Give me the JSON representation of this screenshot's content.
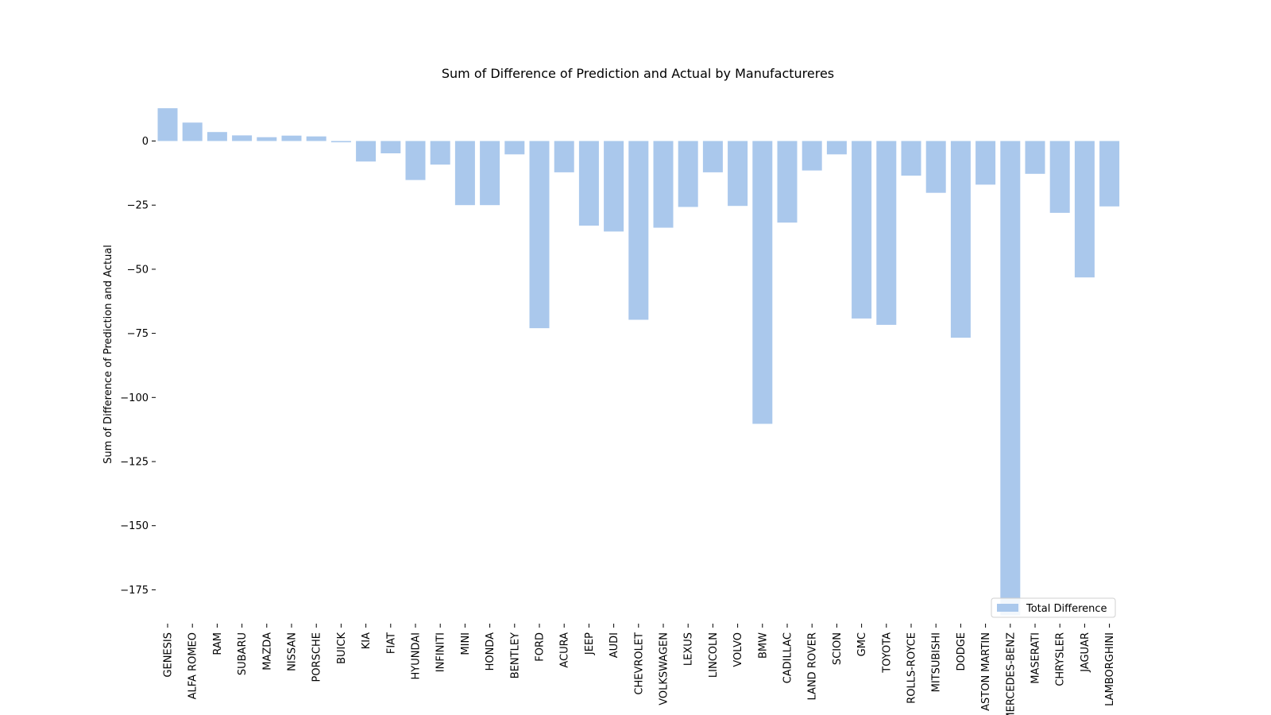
{
  "chart_data": {
    "type": "bar",
    "title": "Sum of Difference of Prediction and Actual by Manufactureres",
    "xlabel": "",
    "ylabel": "Sum of Difference of Prediction and Actual",
    "categories": [
      "GENESIS",
      "ALFA ROMEO",
      "RAM",
      "SUBARU",
      "MAZDA",
      "NISSAN",
      "PORSCHE",
      "BUICK",
      "KIA",
      "FIAT",
      "HYUNDAI",
      "INFINITI",
      "MINI",
      "HONDA",
      "BENTLEY",
      "FORD",
      "ACURA",
      "JEEP",
      "AUDI",
      "CHEVROLET",
      "VOLKSWAGEN",
      "LEXUS",
      "LINCOLN",
      "VOLVO",
      "BMW",
      "CADILLAC",
      "LAND ROVER",
      "SCION",
      "GMC",
      "TOYOTA",
      "ROLLS-ROYCE",
      "MITSUBISHI",
      "DODGE",
      "ASTON MARTIN",
      "MERCEDES-BENZ",
      "MASERATI",
      "CHRYSLER",
      "JAGUAR",
      "LAMBORGHINI"
    ],
    "series": [
      {
        "name": "Total Difference",
        "color": "#aac8ec",
        "values": [
          12.8,
          7.2,
          3.5,
          2.2,
          1.5,
          2.1,
          1.8,
          -0.5,
          -8,
          -4.8,
          -15.2,
          -9.2,
          -25,
          -25,
          -5.2,
          -73,
          -12.2,
          -33,
          -35.3,
          -69.7,
          -33.8,
          -25.7,
          -12.2,
          -25.3,
          -110.3,
          -31.8,
          -11.5,
          -5.2,
          -69.2,
          -71.7,
          -13.5,
          -20.2,
          -76.7,
          -17,
          -185,
          -12.8,
          -28,
          -53.2,
          -25.5
        ]
      }
    ],
    "ylim": [
      -187,
      15
    ],
    "yticks": [
      0,
      -25,
      -50,
      -75,
      -100,
      -125,
      -150,
      -175
    ],
    "ytick_labels": [
      "0",
      "−25",
      "−50",
      "−75",
      "−100",
      "−125",
      "−150",
      "−175"
    ],
    "grid": false,
    "legend_position": "lower-right"
  }
}
